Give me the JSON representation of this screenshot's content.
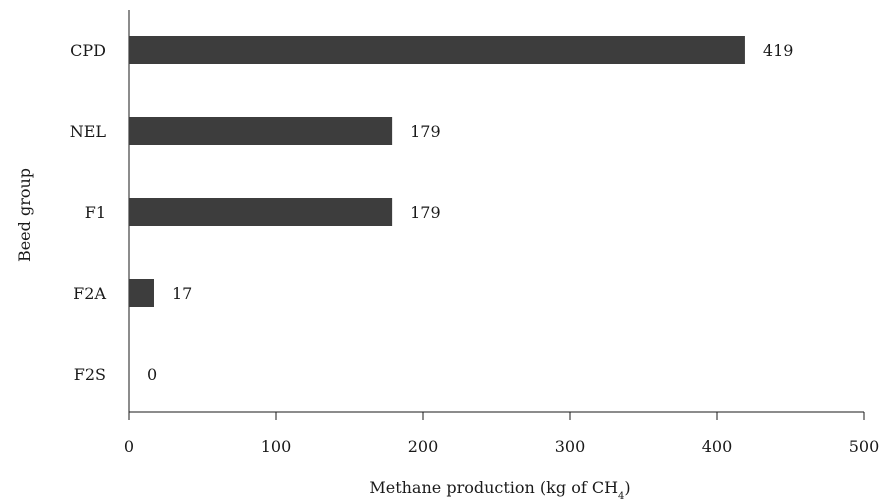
{
  "chart_data": {
    "type": "bar",
    "orientation": "horizontal",
    "categories": [
      "CPD",
      "NEL",
      "F1",
      "F2A",
      "F2S"
    ],
    "values": [
      419,
      179,
      179,
      17,
      0
    ],
    "data_labels": [
      "419",
      "179",
      "179",
      "17",
      "0"
    ],
    "title": "",
    "xlabel": "Methane production (kg of CH",
    "xlabel_subscript": "4",
    "xlabel_suffix": ")",
    "ylabel": "Beed group",
    "xlim": [
      0,
      500
    ],
    "xticks": [
      0,
      100,
      200,
      300,
      400,
      500
    ],
    "xtick_labels": [
      "0",
      "100",
      "200",
      "300",
      "400",
      "500"
    ],
    "grid": false,
    "bar_color": "#3d3d3d"
  }
}
